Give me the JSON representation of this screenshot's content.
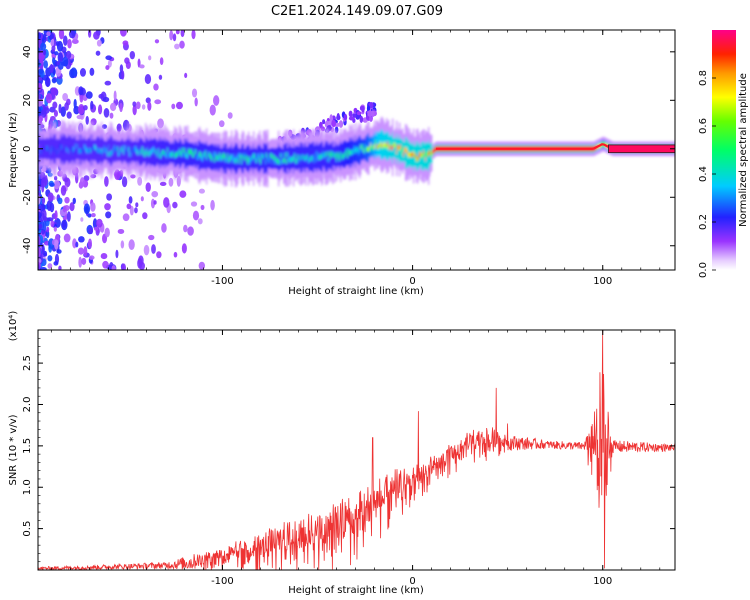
{
  "title": "C2E1.2024.149.09.07.G09",
  "colors": {
    "snr_line": "#ee3333",
    "frame": "#000000",
    "background": "#ffffff"
  },
  "chart_data": [
    {
      "type": "heatmap",
      "xlabel": "Height of straight line (km)",
      "ylabel": "Frequency (Hz)",
      "xlim": [
        -197,
        138
      ],
      "ylim": [
        -50,
        49
      ],
      "x_ticks": [
        -100,
        0,
        100
      ],
      "x_tick_labels": [
        "-100",
        "0",
        "100"
      ],
      "y_ticks": [
        -40,
        -20,
        0,
        20,
        40
      ],
      "y_tick_labels": [
        "-40",
        "-20",
        "0",
        "20",
        "40"
      ],
      "grid": false,
      "colorbar": {
        "label": "Normalized spectral amplitude",
        "range": [
          0,
          1
        ],
        "ticks": [
          0.0,
          0.2,
          0.4,
          0.6,
          0.8
        ],
        "tick_labels": [
          "0.0",
          "0.2",
          "0.4",
          "0.6",
          "0.8"
        ],
        "colormap": "rainbow (violet-blue-cyan-green-yellow-red-magenta)",
        "placement": "right"
      },
      "ridge": {
        "description_points": [
          {
            "x": -190,
            "freq": 0,
            "amp": 0.25
          },
          {
            "x": -150,
            "freq": -1,
            "amp": 0.4
          },
          {
            "x": -120,
            "freq": -2,
            "amp": 0.45
          },
          {
            "x": -100,
            "freq": -4,
            "amp": 0.45
          },
          {
            "x": -70,
            "freq": -4,
            "amp": 0.45
          },
          {
            "x": -40,
            "freq": -3,
            "amp": 0.45
          },
          {
            "x": -25,
            "freq": 0,
            "amp": 0.55
          },
          {
            "x": -18,
            "freq": 2,
            "amp": 0.8
          },
          {
            "x": -8,
            "freq": 0,
            "amp": 0.85
          },
          {
            "x": 0,
            "freq": -3,
            "amp": 0.85
          },
          {
            "x": 8,
            "freq": -3,
            "amp": 0.85
          },
          {
            "x": 12,
            "freq": 0,
            "amp": 0.9
          },
          {
            "x": 60,
            "freq": 0,
            "amp": 0.92
          },
          {
            "x": 95,
            "freq": 0,
            "amp": 0.92
          },
          {
            "x": 100,
            "freq": 2,
            "amp": 0.6
          },
          {
            "x": 105,
            "freq": 0,
            "amp": 0.97
          },
          {
            "x": 138,
            "freq": 0,
            "amp": 0.97
          }
        ]
      }
    },
    {
      "type": "line",
      "xlabel": "Height of straight line (km)",
      "ylabel": "SNR (10 * v/v)",
      "y_scale_label": "(x10⁴)",
      "xlim": [
        -197,
        138
      ],
      "ylim": [
        0,
        2.9
      ],
      "x_ticks": [
        -100,
        0,
        100
      ],
      "x_tick_labels": [
        "-100",
        "0",
        "100"
      ],
      "y_ticks": [
        0.5,
        1.0,
        1.5,
        2.0,
        2.5
      ],
      "y_tick_labels": [
        "0.5",
        "1.0",
        "1.5",
        "2.0",
        "2.5"
      ],
      "grid": false,
      "series": [
        {
          "color": "#ee3333",
          "envelope": [
            {
              "x": -197,
              "mean": 0.02,
              "spread": 0.02
            },
            {
              "x": -160,
              "mean": 0.04,
              "spread": 0.03
            },
            {
              "x": -130,
              "mean": 0.06,
              "spread": 0.04
            },
            {
              "x": -110,
              "mean": 0.12,
              "spread": 0.12
            },
            {
              "x": -90,
              "mean": 0.2,
              "spread": 0.2
            },
            {
              "x": -70,
              "mean": 0.3,
              "spread": 0.3
            },
            {
              "x": -50,
              "mean": 0.4,
              "spread": 0.4
            },
            {
              "x": -30,
              "mean": 0.55,
              "spread": 0.45
            },
            {
              "x": -20,
              "mean": 0.75,
              "spread": 0.4
            },
            {
              "x": -10,
              "mean": 0.9,
              "spread": 0.35
            },
            {
              "x": 0,
              "mean": 1.05,
              "spread": 0.25
            },
            {
              "x": 10,
              "mean": 1.2,
              "spread": 0.2
            },
            {
              "x": 20,
              "mean": 1.35,
              "spread": 0.2
            },
            {
              "x": 30,
              "mean": 1.5,
              "spread": 0.2
            },
            {
              "x": 40,
              "mean": 1.55,
              "spread": 0.25
            },
            {
              "x": 50,
              "mean": 1.55,
              "spread": 0.1
            },
            {
              "x": 70,
              "mean": 1.52,
              "spread": 0.05
            },
            {
              "x": 90,
              "mean": 1.5,
              "spread": 0.05
            },
            {
              "x": 95,
              "mean": 1.45,
              "spread": 0.5
            },
            {
              "x": 100,
              "mean": 1.3,
              "spread": 1.5
            },
            {
              "x": 105,
              "mean": 1.5,
              "spread": 0.08
            },
            {
              "x": 138,
              "mean": 1.48,
              "spread": 0.04
            }
          ],
          "peaks": [
            {
              "x": -21,
              "value": 1.6
            },
            {
              "x": 3,
              "value": 1.92
            },
            {
              "x": 44,
              "value": 2.2
            },
            {
              "x": 50,
              "value": 1.77
            },
            {
              "x": 100,
              "value": 2.9
            },
            {
              "x": 101,
              "value": 0.02
            }
          ]
        }
      ]
    }
  ]
}
